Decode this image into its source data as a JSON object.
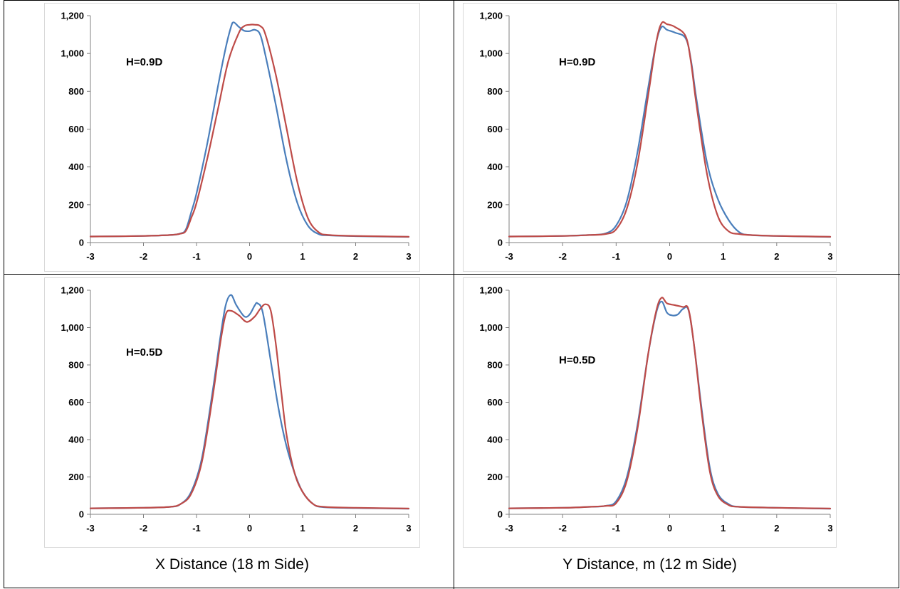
{
  "colors": {
    "series_blue": "#4a7ebb",
    "series_red": "#be4b48",
    "axis": "#808080",
    "table_border": "#000000"
  },
  "captions": {
    "left": "X Distance (18 m Side)",
    "right": "Y Distance, m (12 m Side)"
  },
  "chart_data": [
    {
      "type": "line",
      "annotation": "H=0.9D",
      "xlim": [
        -3,
        3
      ],
      "ylim": [
        0,
        1200
      ],
      "xticks": [
        "-3",
        "-2",
        "-1",
        "0",
        "1",
        "2",
        "3"
      ],
      "yticks": [
        "0",
        "200",
        "400",
        "600",
        "800",
        "1,000",
        "1,200"
      ],
      "series": [
        {
          "color": "#4a7ebb",
          "points": [
            [
              -3,
              32
            ],
            [
              -2,
              35
            ],
            [
              -1.5,
              40
            ],
            [
              -1.3,
              48
            ],
            [
              -1.2,
              70
            ],
            [
              -1.1,
              160
            ],
            [
              -1.0,
              260
            ],
            [
              -0.8,
              520
            ],
            [
              -0.6,
              820
            ],
            [
              -0.45,
              1030
            ],
            [
              -0.35,
              1140
            ],
            [
              -0.3,
              1165
            ],
            [
              -0.2,
              1140
            ],
            [
              -0.1,
              1120
            ],
            [
              0,
              1118
            ],
            [
              0.1,
              1125
            ],
            [
              0.2,
              1100
            ],
            [
              0.3,
              990
            ],
            [
              0.5,
              720
            ],
            [
              0.7,
              430
            ],
            [
              0.9,
              210
            ],
            [
              1.1,
              90
            ],
            [
              1.3,
              45
            ],
            [
              1.5,
              38
            ],
            [
              2,
              34
            ],
            [
              3,
              30
            ]
          ]
        },
        {
          "color": "#be4b48",
          "points": [
            [
              -3,
              32
            ],
            [
              -2,
              35
            ],
            [
              -1.5,
              40
            ],
            [
              -1.3,
              47
            ],
            [
              -1.2,
              62
            ],
            [
              -1.1,
              130
            ],
            [
              -1.0,
              210
            ],
            [
              -0.8,
              440
            ],
            [
              -0.6,
              700
            ],
            [
              -0.4,
              960
            ],
            [
              -0.2,
              1110
            ],
            [
              -0.1,
              1145
            ],
            [
              0,
              1152
            ],
            [
              0.1,
              1152
            ],
            [
              0.2,
              1145
            ],
            [
              0.3,
              1100
            ],
            [
              0.5,
              880
            ],
            [
              0.7,
              600
            ],
            [
              0.9,
              320
            ],
            [
              1.1,
              130
            ],
            [
              1.3,
              55
            ],
            [
              1.5,
              40
            ],
            [
              2,
              35
            ],
            [
              3,
              31
            ]
          ]
        }
      ]
    },
    {
      "type": "line",
      "annotation": "H=0.9D",
      "xlim": [
        -3,
        3
      ],
      "ylim": [
        0,
        1200
      ],
      "xticks": [
        "-3",
        "-2",
        "-1",
        "0",
        "1",
        "2",
        "3"
      ],
      "yticks": [
        "0",
        "200",
        "400",
        "600",
        "800",
        "1,000",
        "1,200"
      ],
      "series": [
        {
          "color": "#4a7ebb",
          "points": [
            [
              -3,
              32
            ],
            [
              -2,
              35
            ],
            [
              -1.5,
              40
            ],
            [
              -1.2,
              48
            ],
            [
              -1.0,
              90
            ],
            [
              -0.8,
              220
            ],
            [
              -0.6,
              480
            ],
            [
              -0.4,
              820
            ],
            [
              -0.25,
              1060
            ],
            [
              -0.15,
              1140
            ],
            [
              -0.05,
              1125
            ],
            [
              0.1,
              1110
            ],
            [
              0.3,
              1080
            ],
            [
              0.4,
              960
            ],
            [
              0.5,
              760
            ],
            [
              0.7,
              420
            ],
            [
              0.9,
              230
            ],
            [
              1.1,
              120
            ],
            [
              1.3,
              55
            ],
            [
              1.5,
              40
            ],
            [
              2,
              35
            ],
            [
              3,
              30
            ]
          ]
        },
        {
          "color": "#be4b48",
          "points": [
            [
              -3,
              32
            ],
            [
              -2,
              35
            ],
            [
              -1.5,
              40
            ],
            [
              -1.2,
              45
            ],
            [
              -1.0,
              70
            ],
            [
              -0.8,
              180
            ],
            [
              -0.6,
              420
            ],
            [
              -0.4,
              780
            ],
            [
              -0.25,
              1060
            ],
            [
              -0.15,
              1160
            ],
            [
              -0.05,
              1155
            ],
            [
              0.1,
              1140
            ],
            [
              0.3,
              1090
            ],
            [
              0.4,
              950
            ],
            [
              0.5,
              730
            ],
            [
              0.7,
              360
            ],
            [
              0.9,
              140
            ],
            [
              1.1,
              60
            ],
            [
              1.3,
              45
            ],
            [
              1.5,
              40
            ],
            [
              2,
              35
            ],
            [
              3,
              31
            ]
          ]
        }
      ]
    },
    {
      "type": "line",
      "annotation": "H=0.5D",
      "xlim": [
        -3,
        3
      ],
      "ylim": [
        0,
        1200
      ],
      "xticks": [
        "-3",
        "-2",
        "-1",
        "0",
        "1",
        "2",
        "3"
      ],
      "yticks": [
        "0",
        "200",
        "400",
        "600",
        "800",
        "1,000",
        "1,200"
      ],
      "series": [
        {
          "color": "#4a7ebb",
          "points": [
            [
              -3,
              32
            ],
            [
              -2,
              35
            ],
            [
              -1.5,
              40
            ],
            [
              -1.3,
              55
            ],
            [
              -1.1,
              120
            ],
            [
              -0.9,
              300
            ],
            [
              -0.7,
              650
            ],
            [
              -0.55,
              950
            ],
            [
              -0.45,
              1120
            ],
            [
              -0.35,
              1175
            ],
            [
              -0.25,
              1120
            ],
            [
              -0.1,
              1060
            ],
            [
              0,
              1070
            ],
            [
              0.1,
              1120
            ],
            [
              0.15,
              1130
            ],
            [
              0.25,
              1080
            ],
            [
              0.4,
              820
            ],
            [
              0.55,
              560
            ],
            [
              0.7,
              360
            ],
            [
              0.85,
              220
            ],
            [
              1.0,
              120
            ],
            [
              1.2,
              55
            ],
            [
              1.4,
              38
            ],
            [
              2,
              34
            ],
            [
              3,
              30
            ]
          ]
        },
        {
          "color": "#be4b48",
          "points": [
            [
              -3,
              32
            ],
            [
              -2,
              35
            ],
            [
              -1.5,
              40
            ],
            [
              -1.3,
              55
            ],
            [
              -1.1,
              110
            ],
            [
              -0.9,
              280
            ],
            [
              -0.7,
              620
            ],
            [
              -0.55,
              920
            ],
            [
              -0.45,
              1070
            ],
            [
              -0.35,
              1090
            ],
            [
              -0.2,
              1065
            ],
            [
              -0.05,
              1030
            ],
            [
              0.1,
              1060
            ],
            [
              0.2,
              1100
            ],
            [
              0.3,
              1125
            ],
            [
              0.4,
              1090
            ],
            [
              0.5,
              900
            ],
            [
              0.6,
              650
            ],
            [
              0.7,
              420
            ],
            [
              0.85,
              220
            ],
            [
              1.0,
              120
            ],
            [
              1.2,
              55
            ],
            [
              1.4,
              40
            ],
            [
              2,
              35
            ],
            [
              3,
              31
            ]
          ]
        }
      ]
    },
    {
      "type": "line",
      "annotation": "H=0.5D",
      "xlim": [
        -3,
        3
      ],
      "ylim": [
        0,
        1200
      ],
      "xticks": [
        "-3",
        "-2",
        "-1",
        "0",
        "1",
        "2",
        "3"
      ],
      "yticks": [
        "0",
        "200",
        "400",
        "600",
        "800",
        "1,000",
        "1,200"
      ],
      "series": [
        {
          "color": "#4a7ebb",
          "points": [
            [
              -3,
              32
            ],
            [
              -2,
              35
            ],
            [
              -1.5,
              40
            ],
            [
              -1.2,
              45
            ],
            [
              -1.0,
              70
            ],
            [
              -0.8,
              200
            ],
            [
              -0.6,
              480
            ],
            [
              -0.4,
              860
            ],
            [
              -0.25,
              1080
            ],
            [
              -0.15,
              1140
            ],
            [
              -0.05,
              1080
            ],
            [
              0.05,
              1065
            ],
            [
              0.15,
              1070
            ],
            [
              0.25,
              1100
            ],
            [
              0.35,
              1095
            ],
            [
              0.45,
              920
            ],
            [
              0.6,
              560
            ],
            [
              0.75,
              250
            ],
            [
              0.9,
              110
            ],
            [
              1.1,
              55
            ],
            [
              1.3,
              40
            ],
            [
              2,
              35
            ],
            [
              3,
              30
            ]
          ]
        },
        {
          "color": "#be4b48",
          "points": [
            [
              -3,
              32
            ],
            [
              -2,
              35
            ],
            [
              -1.5,
              40
            ],
            [
              -1.2,
              45
            ],
            [
              -1.0,
              60
            ],
            [
              -0.8,
              180
            ],
            [
              -0.6,
              460
            ],
            [
              -0.4,
              860
            ],
            [
              -0.25,
              1090
            ],
            [
              -0.15,
              1160
            ],
            [
              -0.05,
              1130
            ],
            [
              0.1,
              1120
            ],
            [
              0.25,
              1110
            ],
            [
              0.35,
              1100
            ],
            [
              0.45,
              920
            ],
            [
              0.6,
              540
            ],
            [
              0.75,
              230
            ],
            [
              0.9,
              100
            ],
            [
              1.1,
              50
            ],
            [
              1.3,
              40
            ],
            [
              2,
              35
            ],
            [
              3,
              31
            ]
          ]
        }
      ]
    }
  ]
}
